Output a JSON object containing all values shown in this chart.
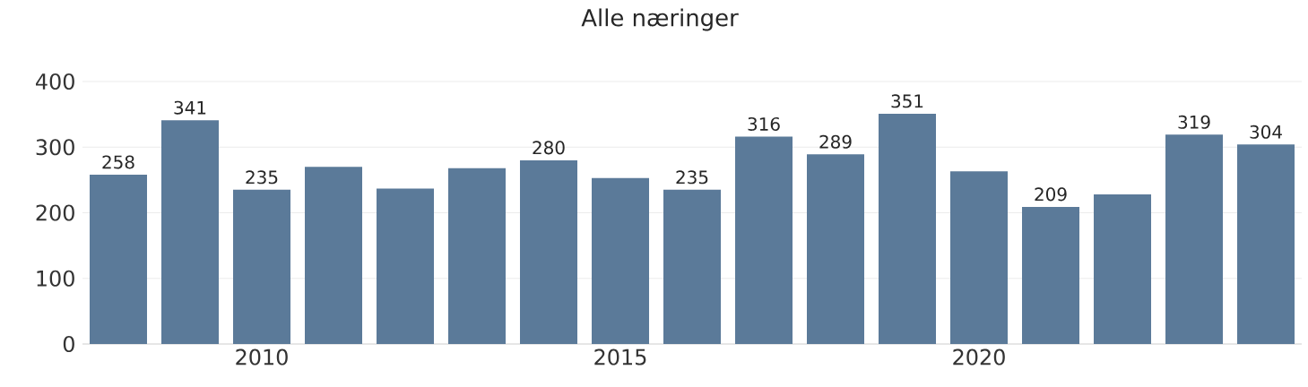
{
  "chart_data": {
    "type": "bar",
    "title": "Alle næringer",
    "categories": [
      null,
      null,
      "2010",
      null,
      null,
      null,
      null,
      "2015",
      null,
      null,
      null,
      null,
      "2020",
      null,
      null,
      null,
      null
    ],
    "values": [
      258,
      341,
      235,
      270,
      237,
      268,
      280,
      253,
      235,
      316,
      289,
      351,
      263,
      209,
      228,
      319,
      304
    ],
    "value_labels": [
      "258",
      "341",
      "235",
      null,
      null,
      null,
      "280",
      null,
      "235",
      "316",
      "289",
      "351",
      null,
      "209",
      null,
      "319",
      "304"
    ],
    "color": "#5b7a99",
    "ylim": [
      0,
      400
    ],
    "yticks": [
      0,
      100,
      200,
      300,
      400
    ],
    "grid": "y"
  }
}
